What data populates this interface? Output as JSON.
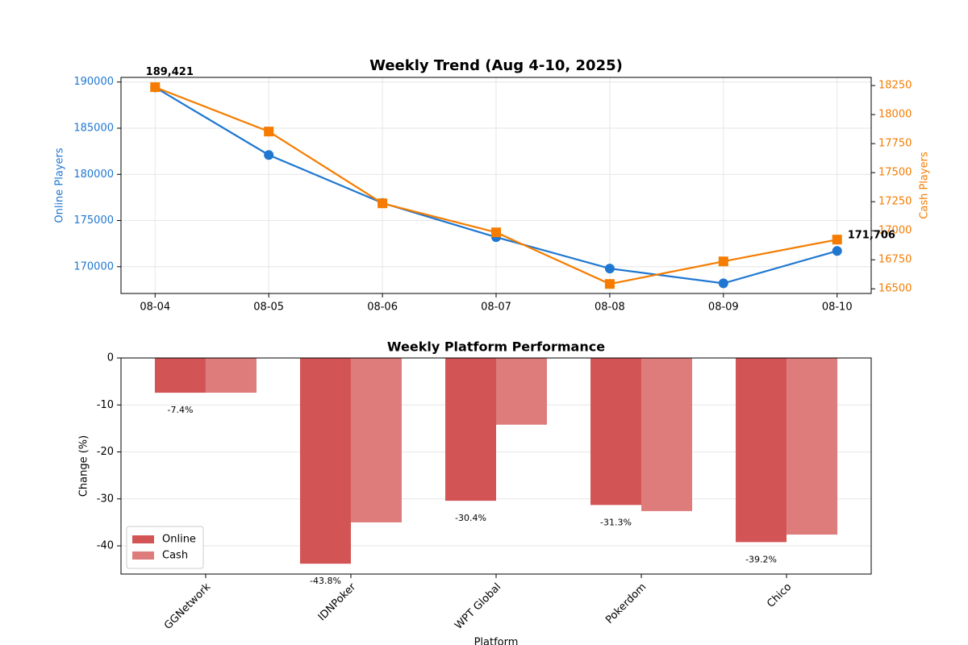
{
  "chart_data": [
    {
      "type": "line",
      "title": "Weekly Trend (Aug 4-10, 2025)",
      "categories": [
        "08-04",
        "08-05",
        "08-06",
        "08-07",
        "08-08",
        "08-09",
        "08-10"
      ],
      "ylabel": "Online Players",
      "y2label": "Cash Players",
      "ylim": [
        167100,
        190500
      ],
      "yticks": [
        170000,
        175000,
        180000,
        185000,
        190000
      ],
      "y2lim": [
        16460,
        18320
      ],
      "y2ticks": [
        16500,
        16750,
        17000,
        17250,
        17500,
        17750,
        18000,
        18250
      ],
      "grid": true,
      "series": [
        {
          "name": "Online Players",
          "color": "#1f77d0",
          "marker": "circle",
          "values": [
            189421,
            182100,
            176900,
            173200,
            169800,
            168200,
            171706
          ],
          "value_labels": [
            "189,421",
            null,
            null,
            null,
            null,
            null,
            "171,706"
          ]
        },
        {
          "name": "Cash Players",
          "color": "#f57c00",
          "marker": "square",
          "axis": "y2",
          "values": [
            18236,
            17854,
            17236,
            16986,
            16542,
            16736,
            16924
          ]
        }
      ]
    },
    {
      "type": "bar",
      "title": "Weekly Platform Performance",
      "categories": [
        "GGNetwork",
        "IDNPoker",
        "WPT Global",
        "Pokerdom",
        "Chico"
      ],
      "xlabel": "Platform",
      "ylabel": "Change (%)",
      "ylim": [
        -46,
        0
      ],
      "yticks": [
        0,
        -10,
        -20,
        -30,
        -40
      ],
      "grid": true,
      "legend": "lower left",
      "series": [
        {
          "name": "Online",
          "color": "#d35454",
          "values": [
            -7.4,
            -43.8,
            -30.4,
            -31.3,
            -39.2
          ],
          "value_labels": [
            "-7.4%",
            "-43.8%",
            "-30.4%",
            "-31.3%",
            "-39.2%"
          ]
        },
        {
          "name": "Cash",
          "color": "#de7c7c",
          "values": [
            -7.4,
            -35.0,
            -14.2,
            -32.6,
            -37.6
          ]
        }
      ]
    }
  ]
}
